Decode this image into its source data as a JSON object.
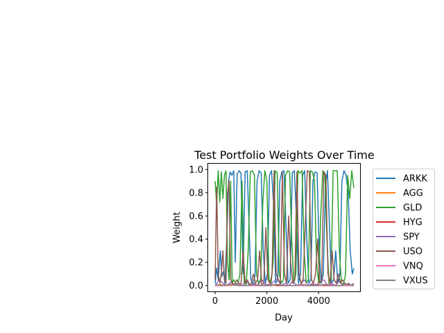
{
  "chart_data": {
    "type": "line",
    "title": "Test Portfolio Weights Over Time",
    "xlabel": "Day",
    "ylabel": "Weight",
    "xlim": [
      -270,
      5600
    ],
    "ylim": [
      -0.05,
      1.05
    ],
    "xticks": [
      0,
      2000,
      4000
    ],
    "yticks": [
      0.0,
      0.2,
      0.4,
      0.6,
      0.8,
      1.0
    ],
    "ytick_labels": [
      "0.0",
      "0.2",
      "0.4",
      "0.6",
      "0.8",
      "1.0"
    ],
    "grid": false,
    "legend_placement": "outside-right",
    "series": [
      {
        "name": "ARKK",
        "color": "#1f77b4",
        "x": [
          0,
          60,
          120,
          200,
          260,
          320,
          380,
          450,
          520,
          580,
          650,
          720,
          780,
          850,
          920,
          1000,
          1080,
          1160,
          1240,
          1300,
          1380,
          1460,
          1540,
          1620,
          1700,
          1780,
          1860,
          1940,
          2020,
          2100,
          2180,
          2260,
          2340,
          2420,
          2500,
          2580,
          2660,
          2740,
          2820,
          2900,
          2980,
          3060,
          3140,
          3220,
          3300,
          3380,
          3460,
          3540,
          3620,
          3700,
          3780,
          3860,
          3940,
          4020,
          4100,
          4180,
          4260,
          4340,
          4420,
          4500,
          4580,
          4660,
          4740,
          4820,
          4900,
          4980,
          5060,
          5140,
          5220,
          5300,
          5360
        ],
        "y": [
          0.02,
          0.15,
          0.05,
          0.3,
          0.08,
          0.12,
          0.02,
          0.4,
          0.9,
          0.98,
          0.95,
          0.99,
          0.2,
          0.96,
          0.99,
          0.97,
          0.1,
          0.98,
          0.99,
          0.6,
          0.05,
          0.02,
          0.08,
          0.9,
          0.99,
          0.97,
          0.3,
          0.02,
          0.1,
          0.95,
          0.99,
          0.7,
          0.02,
          0.05,
          0.9,
          0.98,
          0.99,
          0.5,
          0.02,
          0.05,
          0.97,
          0.99,
          0.6,
          0.02,
          0.1,
          0.95,
          0.99,
          0.4,
          0.02,
          0.05,
          0.9,
          0.98,
          0.97,
          0.3,
          0.02,
          0.1,
          0.85,
          0.99,
          0.5,
          0.02,
          0.05,
          0.3,
          0.02,
          0.1,
          0.9,
          0.99,
          0.95,
          0.8,
          0.3,
          0.1,
          0.15
        ]
      },
      {
        "name": "AGG",
        "color": "#ff7f0e",
        "x": [
          0,
          200,
          400,
          600,
          800,
          1000,
          1200,
          1400,
          1600,
          1800,
          2000,
          2200,
          2400,
          2600,
          2800,
          3000,
          3200,
          3400,
          3600,
          3800,
          4000,
          4200,
          4400,
          4600,
          4800,
          5000,
          5200,
          5360
        ],
        "y": [
          0.0,
          0.01,
          0.0,
          0.0,
          0.01,
          0.0,
          0.0,
          0.0,
          0.01,
          0.0,
          0.0,
          0.0,
          0.01,
          0.0,
          0.0,
          0.0,
          0.0,
          0.01,
          0.0,
          0.0,
          0.0,
          0.0,
          0.01,
          0.0,
          0.0,
          0.0,
          0.0,
          0.0
        ]
      },
      {
        "name": "GLD",
        "color": "#2ca02c",
        "x": [
          0,
          60,
          120,
          180,
          240,
          300,
          360,
          420,
          480,
          540,
          600,
          660,
          720,
          800,
          880,
          960,
          1040,
          1120,
          1200,
          1280,
          1360,
          1440,
          1520,
          1600,
          1680,
          1760,
          1840,
          1920,
          2000,
          2080,
          2160,
          2240,
          2320,
          2400,
          2480,
          2560,
          2640,
          2720,
          2800,
          2880,
          2960,
          3040,
          3120,
          3200,
          3280,
          3360,
          3440,
          3520,
          3600,
          3680,
          3760,
          3840,
          3920,
          4000,
          4080,
          4160,
          4240,
          4320,
          4400,
          4480,
          4560,
          4640,
          4720,
          4800,
          4880,
          4960,
          5040,
          5120,
          5200,
          5280,
          5360
        ],
        "y": [
          0.9,
          0.7,
          0.99,
          0.72,
          0.98,
          0.75,
          0.95,
          0.99,
          0.2,
          0.05,
          0.9,
          0.02,
          0.05,
          0.02,
          0.01,
          0.1,
          0.9,
          0.02,
          0.01,
          0.3,
          0.98,
          0.99,
          0.95,
          0.1,
          0.02,
          0.05,
          0.7,
          0.99,
          0.9,
          0.05,
          0.02,
          0.2,
          0.99,
          0.97,
          0.1,
          0.02,
          0.05,
          0.95,
          0.99,
          0.98,
          0.4,
          0.02,
          0.1,
          0.99,
          0.97,
          0.99,
          0.3,
          0.02,
          0.05,
          0.99,
          0.98,
          0.9,
          0.2,
          0.02,
          0.6,
          0.99,
          0.97,
          0.4,
          0.02,
          0.05,
          0.99,
          0.99,
          0.99,
          0.3,
          0.02,
          0.01,
          0.1,
          0.95,
          0.75,
          0.99,
          0.84
        ]
      },
      {
        "name": "HYG",
        "color": "#d62728",
        "x": [
          0,
          300,
          600,
          900,
          1200,
          1500,
          1800,
          2100,
          2400,
          2700,
          3000,
          3300,
          3600,
          3900,
          4200,
          4500,
          4800,
          5100,
          5360
        ],
        "y": [
          0.0,
          0.0,
          0.01,
          0.0,
          0.0,
          0.0,
          0.0,
          0.01,
          0.0,
          0.0,
          0.0,
          0.0,
          0.0,
          0.01,
          0.0,
          0.0,
          0.0,
          0.0,
          0.0
        ]
      },
      {
        "name": "SPY",
        "color": "#9467bd",
        "x": [
          0,
          150,
          300,
          450,
          600,
          750,
          900,
          1050,
          1200,
          1350,
          1500,
          1650,
          1800,
          1950,
          2100,
          2250,
          2400,
          2550,
          2700,
          2850,
          3000,
          3150,
          3300,
          3450,
          3600,
          3750,
          3900,
          4050,
          4200,
          4350,
          4500,
          4650,
          4800,
          4950,
          5100,
          5250,
          5360
        ],
        "y": [
          0.0,
          0.05,
          0.02,
          0.0,
          0.03,
          0.0,
          0.01,
          0.0,
          0.04,
          0.0,
          0.02,
          0.0,
          0.05,
          0.01,
          0.0,
          0.03,
          0.06,
          0.0,
          0.02,
          0.0,
          0.04,
          0.0,
          0.01,
          0.05,
          0.0,
          0.02,
          0.0,
          0.03,
          0.05,
          0.0,
          0.02,
          0.0,
          0.04,
          0.0,
          0.01,
          0.0,
          0.0
        ]
      },
      {
        "name": "USO",
        "color": "#8c564b",
        "x": [
          0,
          60,
          120,
          180,
          240,
          300,
          360,
          420,
          480,
          540,
          600,
          680,
          760,
          840,
          920,
          1000,
          1080,
          1160,
          1240,
          1320,
          1400,
          1480,
          1560,
          1640,
          1720,
          1800,
          1880,
          1960,
          2040,
          2120,
          2200,
          2280,
          2360,
          2440,
          2520,
          2600,
          2680,
          2760,
          2840,
          2920,
          3000,
          3080,
          3160,
          3240,
          3320,
          3400,
          3480,
          3560,
          3640,
          3720,
          3800,
          3880,
          3960,
          4040,
          4120,
          4200,
          4280,
          4360,
          4440,
          4520,
          4600,
          4680,
          4760,
          4840,
          4920,
          5000,
          5080,
          5160,
          5240,
          5300,
          5360
        ],
        "y": [
          0.05,
          0.85,
          0.1,
          0.02,
          0.1,
          0.3,
          0.05,
          0.02,
          0.8,
          0.9,
          0.05,
          0.02,
          0.01,
          0.05,
          0.02,
          0.01,
          0.3,
          0.02,
          0.05,
          0.01,
          0.02,
          0.1,
          0.02,
          0.05,
          0.3,
          0.01,
          0.02,
          0.5,
          0.05,
          0.02,
          0.1,
          0.99,
          0.1,
          0.05,
          0.02,
          0.98,
          0.1,
          0.02,
          0.6,
          0.2,
          0.02,
          0.05,
          0.98,
          0.1,
          0.02,
          0.05,
          0.5,
          0.99,
          0.98,
          0.05,
          0.02,
          0.1,
          0.4,
          0.02,
          0.05,
          0.98,
          0.95,
          0.1,
          0.02,
          0.3,
          0.05,
          0.02,
          0.1,
          0.02,
          0.05,
          0.02,
          0.01,
          0.02,
          0.0,
          0.01,
          0.02
        ]
      },
      {
        "name": "VNQ",
        "color": "#e377c2",
        "x": [
          0,
          400,
          800,
          1200,
          1600,
          2000,
          2400,
          2800,
          3200,
          3600,
          4000,
          4400,
          4800,
          5200,
          5360
        ],
        "y": [
          0.0,
          0.0,
          0.01,
          0.0,
          0.0,
          0.0,
          0.01,
          0.0,
          0.0,
          0.0,
          0.0,
          0.01,
          0.0,
          0.0,
          0.0
        ]
      },
      {
        "name": "VXUS",
        "color": "#7f7f7f",
        "x": [
          0,
          300,
          600,
          900,
          1200,
          1500,
          1800,
          2100,
          2400,
          2700,
          3000,
          3300,
          3600,
          3900,
          4200,
          4500,
          4800,
          5100,
          5360
        ],
        "y": [
          0.01,
          0.0,
          0.01,
          0.0,
          0.0,
          0.01,
          0.0,
          0.0,
          0.01,
          0.0,
          0.0,
          0.01,
          0.0,
          0.0,
          0.01,
          0.0,
          0.0,
          0.01,
          0.0
        ]
      }
    ]
  }
}
